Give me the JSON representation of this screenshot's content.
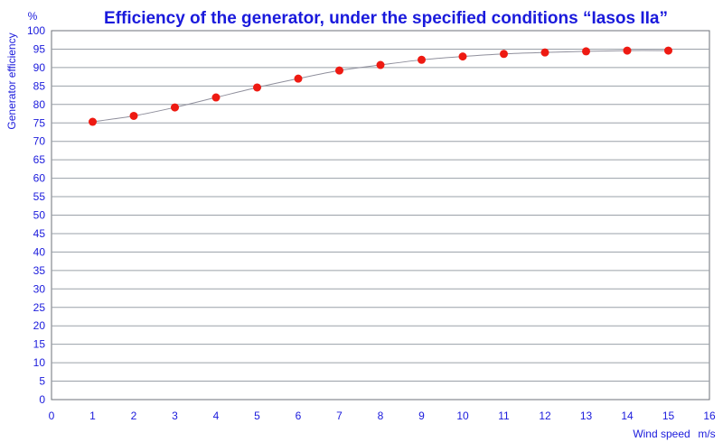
{
  "chart_data": {
    "type": "scatter",
    "title": "Efficiency of the generator, under the specified conditions “Iasos IIa”",
    "ylabel": "Generator efficiency",
    "yunit": "%",
    "xlabel": "Wind speed",
    "xunit": "m/s",
    "xlim": [
      0,
      16
    ],
    "ylim": [
      0,
      100
    ],
    "xticks": [
      0,
      1,
      2,
      3,
      4,
      5,
      6,
      7,
      8,
      9,
      10,
      11,
      12,
      13,
      14,
      15,
      16
    ],
    "yticks": [
      0,
      5,
      10,
      15,
      20,
      25,
      30,
      35,
      40,
      45,
      50,
      55,
      60,
      65,
      70,
      75,
      80,
      85,
      90,
      95,
      100
    ],
    "grid": true,
    "trendline": true,
    "marker_color": "#ee1a12",
    "line_color": "#8f8f9c",
    "text_color": "#1a1adc",
    "x": [
      1,
      2,
      3,
      4,
      5,
      6,
      7,
      8,
      9,
      10,
      11,
      12,
      13,
      14,
      15
    ],
    "y": [
      75.3,
      76.9,
      79.2,
      81.9,
      84.6,
      87.0,
      89.2,
      90.7,
      92.1,
      93.0,
      93.7,
      94.1,
      94.4,
      94.6,
      94.6
    ]
  }
}
